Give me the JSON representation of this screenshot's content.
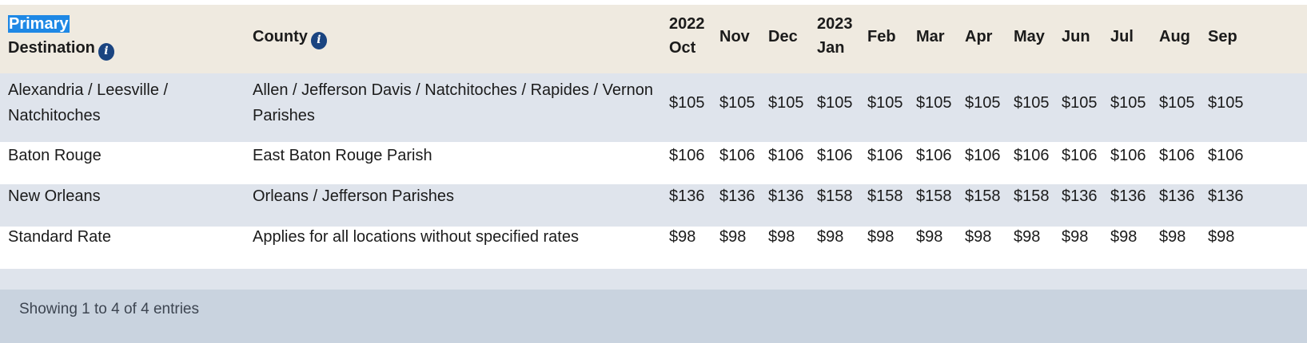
{
  "header": {
    "destination_line1": "Primary",
    "destination_line2": "Destination",
    "county": "County",
    "months": [
      {
        "line1": "2022",
        "line2": "Oct"
      },
      {
        "line1": "",
        "line2": "Nov"
      },
      {
        "line1": "",
        "line2": "Dec"
      },
      {
        "line1": "2023",
        "line2": "Jan"
      },
      {
        "line1": "",
        "line2": "Feb"
      },
      {
        "line1": "",
        "line2": "Mar"
      },
      {
        "line1": "",
        "line2": "Apr"
      },
      {
        "line1": "",
        "line2": "May"
      },
      {
        "line1": "",
        "line2": "Jun"
      },
      {
        "line1": "",
        "line2": "Jul"
      },
      {
        "line1": "",
        "line2": "Aug"
      },
      {
        "line1": "",
        "line2": "Sep"
      }
    ]
  },
  "rows": [
    {
      "destination": [
        "Alexandria / Leesville /",
        "Natchitoches"
      ],
      "county": [
        "Allen / Jefferson Davis / Natchitoches / Rapides / Vernon",
        "Parishes"
      ],
      "rates": [
        "$105",
        "$105",
        "$105",
        "$105",
        "$105",
        "$105",
        "$105",
        "$105",
        "$105",
        "$105",
        "$105",
        "$105"
      ]
    },
    {
      "destination": [
        "Baton Rouge"
      ],
      "county": [
        "East Baton Rouge Parish"
      ],
      "rates": [
        "$106",
        "$106",
        "$106",
        "$106",
        "$106",
        "$106",
        "$106",
        "$106",
        "$106",
        "$106",
        "$106",
        "$106"
      ]
    },
    {
      "destination": [
        "New Orleans"
      ],
      "county": [
        "Orleans / Jefferson Parishes"
      ],
      "rates": [
        "$136",
        "$136",
        "$136",
        "$158",
        "$158",
        "$158",
        "$158",
        "$158",
        "$136",
        "$136",
        "$136",
        "$136"
      ]
    },
    {
      "destination": [
        "Standard Rate"
      ],
      "county": [
        "Applies for all locations without specified rates"
      ],
      "rates": [
        "$98",
        "$98",
        "$98",
        "$98",
        "$98",
        "$98",
        "$98",
        "$98",
        "$98",
        "$98",
        "$98",
        "$98"
      ]
    }
  ],
  "footer": {
    "info": "Showing 1 to 4 of 4 entries"
  },
  "icons": {
    "info": "info-icon",
    "info_glyph": "i"
  },
  "colors": {
    "header_bg": "#efeae0",
    "stripe_bg": "#dfe4ec",
    "footer_bg": "#c9d3df",
    "icon": "#1a4480",
    "selection": "#1e88e5"
  }
}
